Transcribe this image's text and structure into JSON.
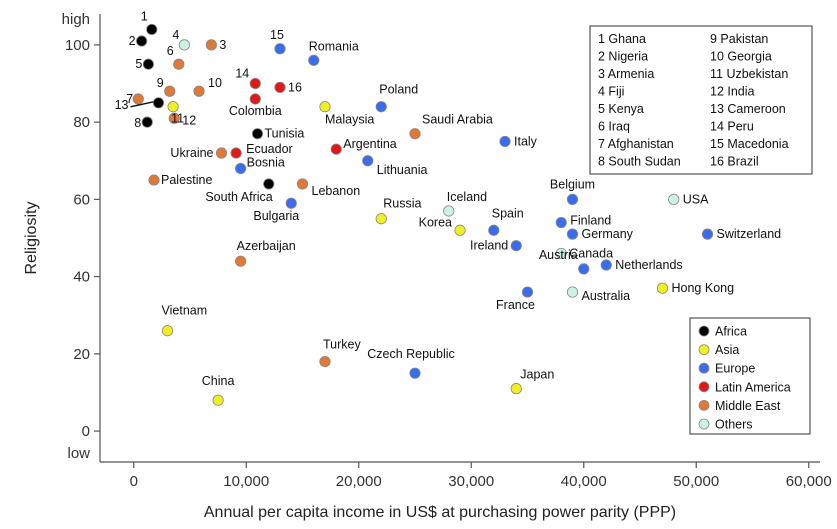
{
  "chart_data": {
    "type": "scatter",
    "title": "",
    "xlabel": "Annual per capita income in US$ at purchasing power parity (PPP)",
    "ylabel": "Religiosity",
    "xlim": [
      -3000,
      61000
    ],
    "ylim": [
      -8,
      108
    ],
    "x_ticks": [
      {
        "value": 0,
        "label": "0"
      },
      {
        "value": 10000,
        "label": "10,000"
      },
      {
        "value": 20000,
        "label": "20,000"
      },
      {
        "value": 30000,
        "label": "30,000"
      },
      {
        "value": 40000,
        "label": "40,000"
      },
      {
        "value": 50000,
        "label": "50,000"
      },
      {
        "value": 60000,
        "label": "60,000"
      }
    ],
    "y_ticks": [
      {
        "value": 0,
        "label": "0"
      },
      {
        "value": 20,
        "label": "20"
      },
      {
        "value": 40,
        "label": "40"
      },
      {
        "value": 60,
        "label": "60"
      },
      {
        "value": 80,
        "label": "80"
      },
      {
        "value": 100,
        "label": "100"
      }
    ],
    "y_extremes": {
      "high": "high",
      "low": "low"
    },
    "categories": [
      {
        "name": "Africa",
        "color": "#000000"
      },
      {
        "name": "Asia",
        "color": "#f0f020"
      },
      {
        "name": "Europe",
        "color": "#3a6cf0"
      },
      {
        "name": "Latin America",
        "color": "#e01818"
      },
      {
        "name": "Middle East",
        "color": "#e07838"
      },
      {
        "name": "Others",
        "color": "#cdf2e2"
      }
    ],
    "points": [
      {
        "label": "1",
        "category": "Africa",
        "x": 1600,
        "y": 104
      },
      {
        "label": "2",
        "category": "Nigeria",
        "category_group": "Africa",
        "x": 700,
        "y": 101
      },
      {
        "label": "3",
        "category": "Middle East",
        "x": 6900,
        "y": 100
      },
      {
        "label": "4",
        "category": "Others",
        "x": 4500,
        "y": 100
      },
      {
        "label": "5",
        "category": "Africa",
        "x": 1300,
        "y": 95
      },
      {
        "label": "6",
        "category": "Middle East",
        "x": 4000,
        "y": 95
      },
      {
        "label": "7",
        "category": "Middle East",
        "x": 400,
        "y": 86
      },
      {
        "label": "8",
        "category": "Africa",
        "x": 1200,
        "y": 80
      },
      {
        "label": "9",
        "category": "Middle East",
        "x": 3200,
        "y": 88
      },
      {
        "label": "10",
        "category": "Middle East",
        "x": 5800,
        "y": 88
      },
      {
        "label": "11",
        "category": "Asia",
        "x": 3500,
        "y": 84
      },
      {
        "label": "12",
        "category": "Middle East",
        "x": 3600,
        "y": 81
      },
      {
        "label": "13",
        "category": "Africa",
        "x": 2200,
        "y": 85
      },
      {
        "label": "14",
        "category": "Latin America",
        "x": 10800,
        "y": 90
      },
      {
        "label": "15",
        "category": "Europe",
        "x": 13000,
        "y": 99
      },
      {
        "label": "16",
        "category": "Latin America",
        "x": 13000,
        "y": 89
      },
      {
        "label": "Romania",
        "category": "Europe",
        "x": 16000,
        "y": 96
      },
      {
        "label": "Colombia",
        "category": "Latin America",
        "x": 10800,
        "y": 86
      },
      {
        "label": "Malaysia",
        "category": "Asia",
        "x": 17000,
        "y": 84
      },
      {
        "label": "Poland",
        "category": "Europe",
        "x": 22000,
        "y": 84
      },
      {
        "label": "Tunisia",
        "category": "Africa",
        "x": 11000,
        "y": 77
      },
      {
        "label": "Saudi Arabia",
        "category": "Middle East",
        "x": 25000,
        "y": 77
      },
      {
        "label": "Italy",
        "category": "Europe",
        "x": 33000,
        "y": 75
      },
      {
        "label": "Ukraine",
        "category": "Middle East",
        "x": 7800,
        "y": 72
      },
      {
        "label": "Ecuador",
        "category": "Latin America",
        "x": 9100,
        "y": 72
      },
      {
        "label": "Argentina",
        "category": "Latin America",
        "x": 18000,
        "y": 73
      },
      {
        "label": "Lithuania",
        "category": "Europe",
        "x": 20800,
        "y": 70
      },
      {
        "label": "Bosnia",
        "category": "Europe",
        "x": 9500,
        "y": 68
      },
      {
        "label": "Palestine",
        "category": "Middle East",
        "x": 1800,
        "y": 65
      },
      {
        "label": "South Africa",
        "category": "Africa",
        "x": 12000,
        "y": 64
      },
      {
        "label": "Lebanon",
        "category": "Middle East",
        "x": 15000,
        "y": 64
      },
      {
        "label": "Bulgaria",
        "category": "Europe",
        "x": 14000,
        "y": 59
      },
      {
        "label": "Russia",
        "category": "Asia",
        "x": 22000,
        "y": 55
      },
      {
        "label": "Iceland",
        "category": "Others",
        "x": 28000,
        "y": 57
      },
      {
        "label": "Belgium",
        "category": "Europe",
        "x": 39000,
        "y": 60
      },
      {
        "label": "USA",
        "category": "Others",
        "x": 48000,
        "y": 60
      },
      {
        "label": "Korea",
        "category": "Asia",
        "x": 29000,
        "y": 52
      },
      {
        "label": "Spain",
        "category": "Europe",
        "x": 32000,
        "y": 52
      },
      {
        "label": "Finland",
        "category": "Europe",
        "x": 38000,
        "y": 54
      },
      {
        "label": "Germany",
        "category": "Europe",
        "x": 39000,
        "y": 51
      },
      {
        "label": "Switzerland",
        "category": "Europe",
        "x": 51000,
        "y": 51
      },
      {
        "label": "Ireland",
        "category": "Europe",
        "x": 34000,
        "y": 48
      },
      {
        "label": "Canada",
        "category": "Others",
        "x": 38000,
        "y": 46
      },
      {
        "label": "Azerbaijan",
        "category": "Middle East",
        "x": 9500,
        "y": 44
      },
      {
        "label": "Netherlands",
        "category": "Europe",
        "x": 42000,
        "y": 43
      },
      {
        "label": "Austria",
        "category": "Europe",
        "x": 40000,
        "y": 42
      },
      {
        "label": "Hong Kong",
        "category": "Asia",
        "x": 47000,
        "y": 37
      },
      {
        "label": "France",
        "category": "Europe",
        "x": 35000,
        "y": 36
      },
      {
        "label": "Australia",
        "category": "Others",
        "x": 39000,
        "y": 36
      },
      {
        "label": "Vietnam",
        "category": "Asia",
        "x": 3000,
        "y": 26
      },
      {
        "label": "Turkey",
        "category": "Middle East",
        "x": 17000,
        "y": 18
      },
      {
        "label": "Czech Republic",
        "category": "Europe",
        "x": 25000,
        "y": 15
      },
      {
        "label": "Japan",
        "category": "Asia",
        "x": 34000,
        "y": 11
      },
      {
        "label": "China",
        "category": "Asia",
        "x": 7500,
        "y": 8
      }
    ],
    "key_list": [
      "1 Ghana",
      "2 Nigeria",
      "3 Armenia",
      "4 Fiji",
      "5 Kenya",
      "6 Iraq",
      "7 Afghanistan",
      "8 South Sudan",
      "9 Pakistan",
      "10 Georgia",
      "11 Uzbekistan",
      "12 India",
      "13 Cameroon",
      "14 Peru",
      "15 Macedonia",
      "16 Brazil"
    ],
    "legend": {
      "position": "bottom-right",
      "entries": [
        "Africa",
        "Asia",
        "Europe",
        "Latin America",
        "Middle East",
        "Others"
      ]
    },
    "grid": false
  }
}
